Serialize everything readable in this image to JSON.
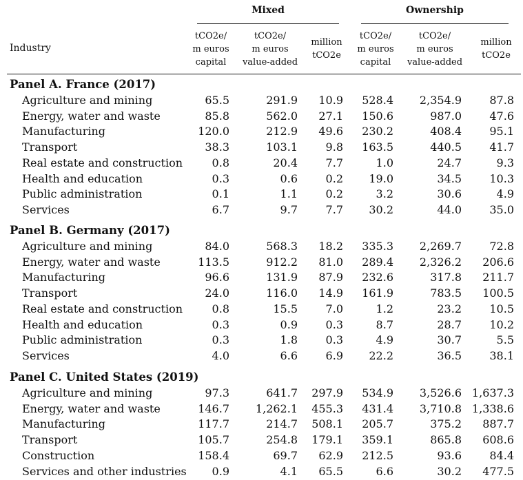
{
  "header": {
    "industry_label": "Industry",
    "groups": [
      "Mixed",
      "Ownership"
    ],
    "columns": [
      [
        "tCO2e/",
        "m euros",
        "capital"
      ],
      [
        "tCO2e/",
        "m euros",
        "value-added"
      ],
      [
        "million",
        "tCO2e"
      ],
      [
        "tCO2e/",
        "m euros",
        "capital"
      ],
      [
        "tCO2e/",
        "m euros",
        "value-added"
      ],
      [
        "million",
        "tCO2e"
      ]
    ]
  },
  "panels": [
    {
      "title": "Panel A. France (2017)",
      "rows": [
        {
          "industry": "Agriculture and mining",
          "values": [
            "65.5",
            "291.9",
            "10.9",
            "528.4",
            "2,354.9",
            "87.8"
          ]
        },
        {
          "industry": "Energy, water and waste",
          "values": [
            "85.8",
            "562.0",
            "27.1",
            "150.6",
            "987.0",
            "47.6"
          ]
        },
        {
          "industry": "Manufacturing",
          "values": [
            "120.0",
            "212.9",
            "49.6",
            "230.2",
            "408.4",
            "95.1"
          ]
        },
        {
          "industry": "Transport",
          "values": [
            "38.3",
            "103.1",
            "9.8",
            "163.5",
            "440.5",
            "41.7"
          ]
        },
        {
          "industry": "Real estate and construction",
          "values": [
            "0.8",
            "20.4",
            "7.7",
            "1.0",
            "24.7",
            "9.3"
          ]
        },
        {
          "industry": "Health and education",
          "values": [
            "0.3",
            "0.6",
            "0.2",
            "19.0",
            "34.5",
            "10.3"
          ]
        },
        {
          "industry": "Public administration",
          "values": [
            "0.1",
            "1.1",
            "0.2",
            "3.2",
            "30.6",
            "4.9"
          ]
        },
        {
          "industry": "Services",
          "values": [
            "6.7",
            "9.7",
            "7.7",
            "30.2",
            "44.0",
            "35.0"
          ]
        }
      ]
    },
    {
      "title": "Panel B. Germany (2017)",
      "rows": [
        {
          "industry": "Agriculture and mining",
          "values": [
            "84.0",
            "568.3",
            "18.2",
            "335.3",
            "2,269.7",
            "72.8"
          ]
        },
        {
          "industry": "Energy, water and waste",
          "values": [
            "113.5",
            "912.2",
            "81.0",
            "289.4",
            "2,326.2",
            "206.6"
          ]
        },
        {
          "industry": "Manufacturing",
          "values": [
            "96.6",
            "131.9",
            "87.9",
            "232.6",
            "317.8",
            "211.7"
          ]
        },
        {
          "industry": "Transport",
          "values": [
            "24.0",
            "116.0",
            "14.9",
            "161.9",
            "783.5",
            "100.5"
          ]
        },
        {
          "industry": "Real estate and construction",
          "values": [
            "0.8",
            "15.5",
            "7.0",
            "1.2",
            "23.2",
            "10.5"
          ]
        },
        {
          "industry": "Health and education",
          "values": [
            "0.3",
            "0.9",
            "0.3",
            "8.7",
            "28.7",
            "10.2"
          ]
        },
        {
          "industry": "Public administration",
          "values": [
            "0.3",
            "1.8",
            "0.3",
            "4.9",
            "30.7",
            "5.5"
          ]
        },
        {
          "industry": "Services",
          "values": [
            "4.0",
            "6.6",
            "6.9",
            "22.2",
            "36.5",
            "38.1"
          ]
        }
      ]
    },
    {
      "title": "Panel C. United States (2019)",
      "rows": [
        {
          "industry": "Agriculture and mining",
          "values": [
            "97.3",
            "641.7",
            "297.9",
            "534.9",
            "3,526.6",
            "1,637.3"
          ]
        },
        {
          "industry": "Energy, water and waste",
          "values": [
            "146.7",
            "1,262.1",
            "455.3",
            "431.4",
            "3,710.8",
            "1,338.6"
          ]
        },
        {
          "industry": "Manufacturing",
          "values": [
            "117.7",
            "214.7",
            "508.1",
            "205.7",
            "375.2",
            "887.7"
          ]
        },
        {
          "industry": "Transport",
          "values": [
            "105.7",
            "254.8",
            "179.1",
            "359.1",
            "865.8",
            "608.6"
          ]
        },
        {
          "industry": "Construction",
          "values": [
            "158.4",
            "69.7",
            "62.9",
            "212.5",
            "93.6",
            "84.4"
          ]
        },
        {
          "industry": "Services and other industries",
          "values": [
            "0.9",
            "4.1",
            "65.5",
            "6.6",
            "30.2",
            "477.5"
          ]
        }
      ]
    }
  ]
}
